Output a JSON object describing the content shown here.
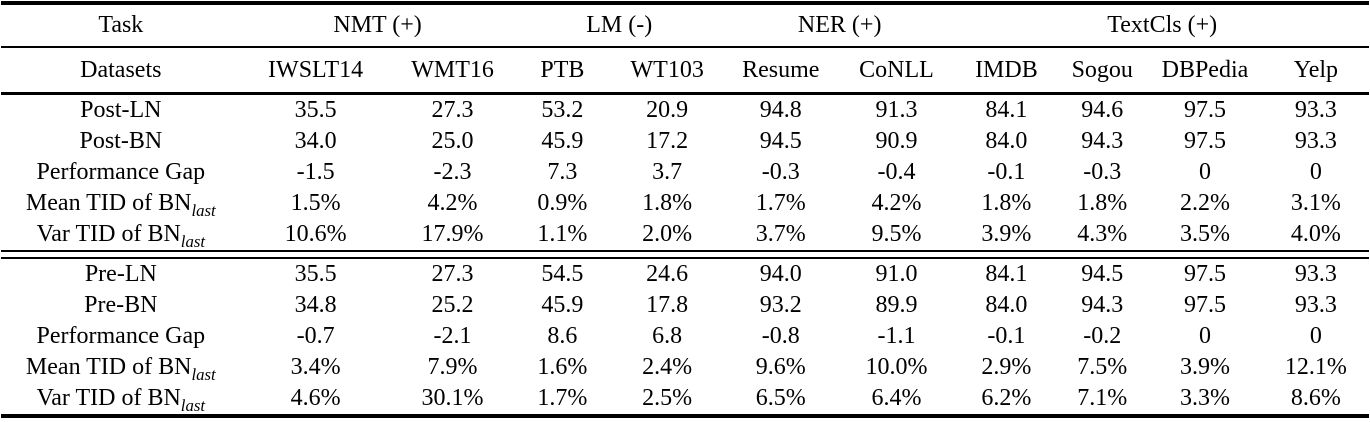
{
  "page": {
    "background_color": "#ffffff",
    "text_color": "#000000"
  },
  "table": {
    "task_header": {
      "label": "Task",
      "groups": [
        {
          "label": "NMT (+)",
          "span": 2
        },
        {
          "label": "LM (-)",
          "span": 2
        },
        {
          "label": "NER (+)",
          "span": 2
        },
        {
          "label": "TextCls (+)",
          "span": 4
        }
      ]
    },
    "dataset_header": {
      "label": "Datasets",
      "columns": [
        "IWSLT14",
        "WMT16",
        "PTB",
        "WT103",
        "Resume",
        "CoNLL",
        "IMDB",
        "Sogou",
        "DBPedia",
        "Yelp"
      ]
    },
    "blocks": [
      {
        "rows": [
          {
            "label": "Post-LN",
            "values": [
              "35.5",
              "27.3",
              "53.2",
              "20.9",
              "94.8",
              "91.3",
              "84.1",
              "94.6",
              "97.5",
              "93.3"
            ]
          },
          {
            "label": "Post-BN",
            "values": [
              "34.0",
              "25.0",
              "45.9",
              "17.2",
              "94.5",
              "90.9",
              "84.0",
              "94.3",
              "97.5",
              "93.3"
            ]
          },
          {
            "label": "Performance Gap",
            "values": [
              "-1.5",
              "-2.3",
              "7.3",
              "3.7",
              "-0.3",
              "-0.4",
              "-0.1",
              "-0.3",
              "0",
              "0"
            ]
          },
          {
            "label": "Mean TID of BN",
            "subscript": "last",
            "values": [
              "1.5%",
              "4.2%",
              "0.9%",
              "1.8%",
              "1.7%",
              "4.2%",
              "1.8%",
              "1.8%",
              "2.2%",
              "3.1%"
            ]
          },
          {
            "label": "Var TID of BN",
            "subscript": "last",
            "values": [
              "10.6%",
              "17.9%",
              "1.1%",
              "2.0%",
              "3.7%",
              "9.5%",
              "3.9%",
              "4.3%",
              "3.5%",
              "4.0%"
            ]
          }
        ]
      },
      {
        "rows": [
          {
            "label": "Pre-LN",
            "values": [
              "35.5",
              "27.3",
              "54.5",
              "24.6",
              "94.0",
              "91.0",
              "84.1",
              "94.5",
              "97.5",
              "93.3"
            ]
          },
          {
            "label": "Pre-BN",
            "values": [
              "34.8",
              "25.2",
              "45.9",
              "17.8",
              "93.2",
              "89.9",
              "84.0",
              "94.3",
              "97.5",
              "93.3"
            ]
          },
          {
            "label": "Performance Gap",
            "values": [
              "-0.7",
              "-2.1",
              "8.6",
              "6.8",
              "-0.8",
              "-1.1",
              "-0.1",
              "-0.2",
              "0",
              "0"
            ]
          },
          {
            "label": "Mean TID of BN",
            "subscript": "last",
            "values": [
              "3.4%",
              "7.9%",
              "1.6%",
              "2.4%",
              "9.6%",
              "10.0%",
              "2.9%",
              "7.5%",
              "3.9%",
              "12.1%"
            ]
          },
          {
            "label": "Var TID of BN",
            "subscript": "last",
            "values": [
              "4.6%",
              "30.1%",
              "1.7%",
              "2.5%",
              "6.5%",
              "6.4%",
              "6.2%",
              "7.1%",
              "3.3%",
              "8.6%"
            ]
          }
        ]
      }
    ]
  }
}
